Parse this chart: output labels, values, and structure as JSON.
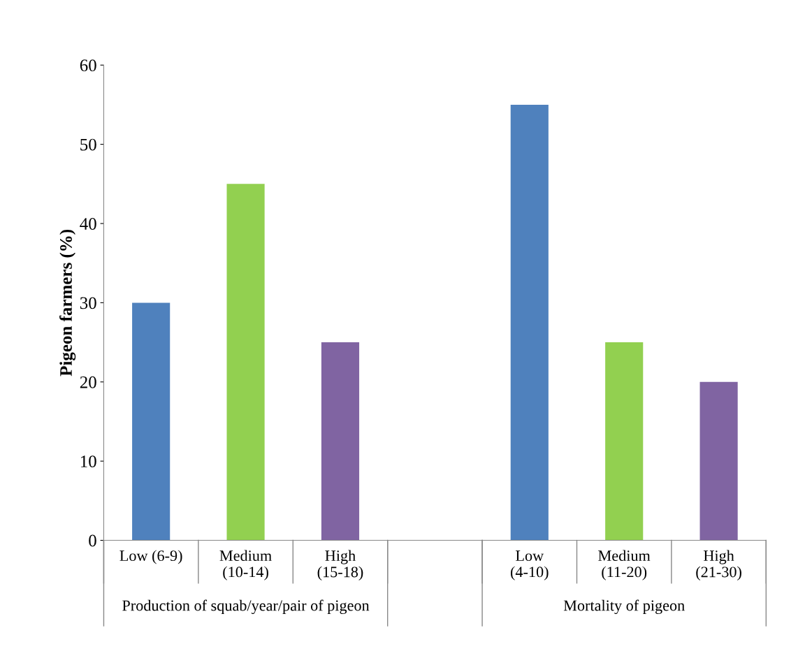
{
  "chart_data": {
    "type": "bar",
    "ylabel": "Pigeon farmers (%)",
    "categories": [
      "Low (6-9)",
      "Medium (10-14)",
      "High (15-18)",
      null,
      "Low (4-10)",
      "Medium (11-20)",
      "High (21-30)"
    ],
    "values": [
      30,
      45,
      25,
      null,
      55,
      25,
      20
    ],
    "colors": [
      "#4f81bd",
      "#92d050",
      "#8064a2",
      "#ffffff",
      "#4f81bd",
      "#92d050",
      "#8064a2"
    ],
    "ylim": [
      0,
      60
    ],
    "yticks": [
      0,
      10,
      20,
      30,
      40,
      50,
      60
    ],
    "grid": false,
    "annotations": [
      "Production of squab/year/pair of pigeon",
      "Mortality of pigeon"
    ]
  }
}
